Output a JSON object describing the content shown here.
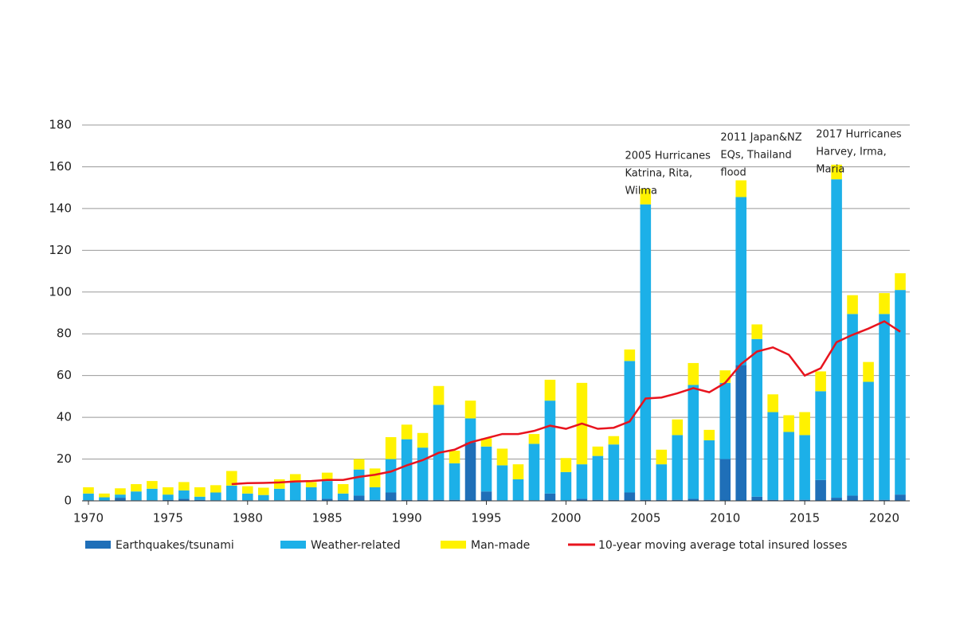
{
  "chart_data": {
    "type": "bar",
    "stacked": true,
    "x": [
      1970,
      1971,
      1972,
      1973,
      1974,
      1975,
      1976,
      1977,
      1978,
      1979,
      1980,
      1981,
      1982,
      1983,
      1984,
      1985,
      1986,
      1987,
      1988,
      1989,
      1990,
      1991,
      1992,
      1993,
      1994,
      1995,
      1996,
      1997,
      1998,
      1999,
      2000,
      2001,
      2002,
      2003,
      2004,
      2005,
      2006,
      2007,
      2008,
      2009,
      2010,
      2011,
      2012,
      2013,
      2014,
      2015,
      2016,
      2017,
      2018,
      2019,
      2020,
      2021
    ],
    "series": [
      {
        "name": "Earthquakes/tsunami",
        "color": "#1f6fb8",
        "values": [
          0.3,
          0.2,
          1.5,
          0.3,
          0.3,
          0.5,
          1,
          0.5,
          0.3,
          0.3,
          0.3,
          0.3,
          0.3,
          0.3,
          0.5,
          1,
          0.5,
          2.5,
          0.5,
          4,
          0.5,
          0.5,
          0.5,
          0.5,
          28,
          4.5,
          0.3,
          0.3,
          0.3,
          3.5,
          0.3,
          1,
          0.5,
          0.5,
          4,
          0.5,
          0.5,
          0.5,
          1,
          0.5,
          20,
          65,
          2,
          0.5,
          0.5,
          0.5,
          10,
          1.5,
          2.5,
          0.5,
          0.5,
          3
        ]
      },
      {
        "name": "Weather-related",
        "color": "#1cb0e8",
        "values": [
          3.2,
          1.5,
          1.5,
          4.2,
          5.5,
          2.5,
          4,
          1.5,
          3.7,
          7,
          3.2,
          2.5,
          5.5,
          8.5,
          6,
          8.5,
          3,
          12.5,
          6,
          16,
          29,
          25,
          45.5,
          17.5,
          11.5,
          21.5,
          16.7,
          10,
          27,
          44.5,
          13.5,
          16.5,
          21,
          26.5,
          63,
          141.5,
          17,
          31,
          54.5,
          28.5,
          36.5,
          80.5,
          75.5,
          42,
          32.5,
          31,
          42.5,
          152.5,
          87,
          56.5,
          89,
          98
        ]
      },
      {
        "name": "Man-made",
        "color": "#fff200",
        "values": [
          3,
          1.8,
          3,
          3.5,
          3.7,
          3.5,
          4,
          4.5,
          3.5,
          7,
          3.5,
          3.5,
          4.5,
          4,
          2.5,
          4,
          4.5,
          5,
          9,
          10.5,
          7,
          7,
          9,
          6,
          8.5,
          4,
          8,
          7.2,
          4.7,
          10,
          6.7,
          39,
          4.5,
          4,
          5.5,
          7.5,
          7,
          7.5,
          10.5,
          5,
          6,
          8,
          7,
          8.5,
          8,
          11,
          9.5,
          7,
          9,
          9.5,
          10,
          8
        ]
      },
      {
        "name": "10-year moving average total insured losses",
        "type": "line",
        "color": "#e8141e",
        "values": [
          null,
          null,
          null,
          null,
          null,
          null,
          null,
          null,
          null,
          8,
          8.5,
          8.6,
          8.8,
          9.3,
          9.5,
          10,
          10,
          11.5,
          12.5,
          14,
          17,
          19.5,
          23,
          24.5,
          28,
          30,
          32,
          32,
          33.5,
          36,
          34.5,
          37,
          34.5,
          35,
          38,
          49,
          49.5,
          51.5,
          54,
          52,
          56.5,
          65.5,
          71.5,
          73.5,
          70,
          60,
          63.5,
          76,
          79.5,
          82.5,
          86,
          81
        ]
      }
    ],
    "xlim": [
      1969.6,
      2021.6
    ],
    "xticks": [
      1970,
      1975,
      1980,
      1985,
      1990,
      1995,
      2000,
      2005,
      2010,
      2015,
      2020
    ],
    "ylim": [
      0,
      180
    ],
    "yticks": [
      0,
      20,
      40,
      60,
      80,
      100,
      120,
      140,
      160,
      180
    ],
    "grid": true,
    "legend": "bottom",
    "annotations": [
      {
        "x": 2005,
        "lines": [
          "2005 Hurricanes",
          "Katrina, Rita,",
          "Wilma"
        ]
      },
      {
        "x": 2011,
        "lines": [
          "2011 Japan&NZ",
          "EQs, Thailand",
          "flood"
        ]
      },
      {
        "x": 2017,
        "lines": [
          "2017 Hurricanes",
          "Harvey, Irma,",
          "Maria"
        ]
      }
    ]
  }
}
